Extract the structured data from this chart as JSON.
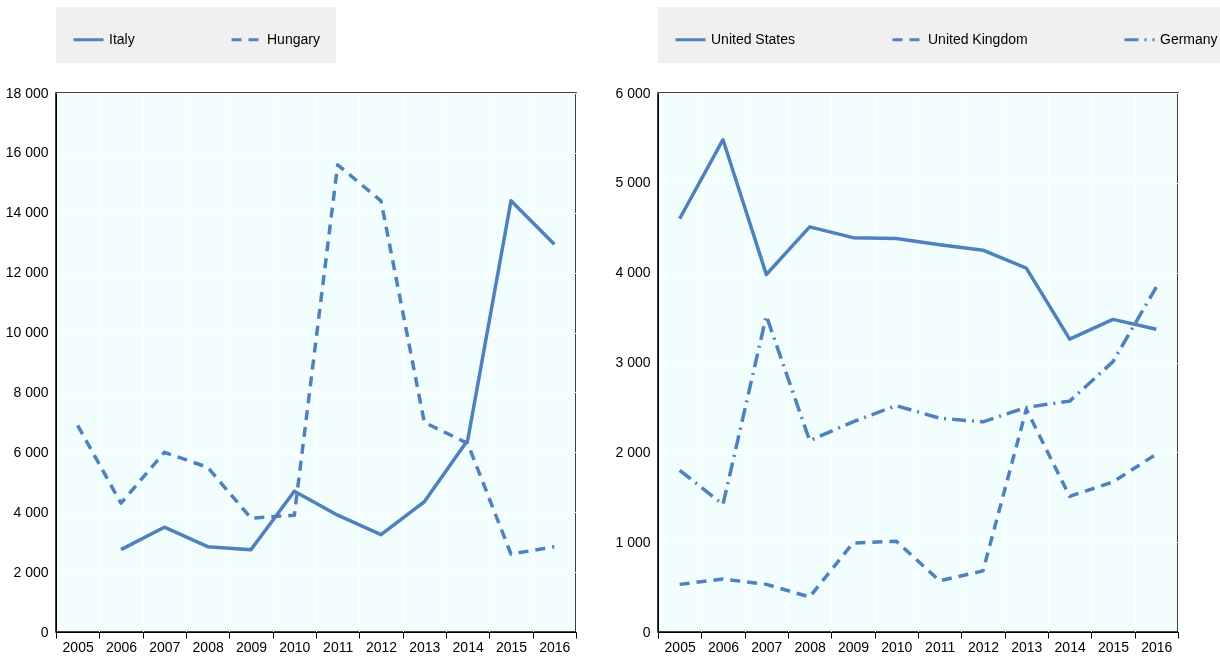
{
  "chart_data": [
    {
      "type": "line",
      "categories": [
        "2005",
        "2006",
        "2007",
        "2008",
        "2009",
        "2010",
        "2011",
        "2012",
        "2013",
        "2014",
        "2015",
        "2016"
      ],
      "ylim": [
        0,
        18000
      ],
      "yticks": [
        0,
        2000,
        4000,
        6000,
        8000,
        10000,
        12000,
        14000,
        16000,
        18000
      ],
      "grid": true,
      "legend": "top",
      "series": [
        {
          "name": "Italy",
          "color": "#4f81bd",
          "line_style": "solid",
          "values": [
            null,
            2750,
            3500,
            2850,
            2750,
            4700,
            3900,
            3250,
            4350,
            6400,
            14400,
            12950
          ]
        },
        {
          "name": "Hungary",
          "color": "#4f81bd",
          "line_style": "dashed",
          "values": [
            6900,
            4300,
            6000,
            5500,
            3800,
            3900,
            15600,
            14400,
            7000,
            6300,
            2600,
            2850
          ]
        }
      ]
    },
    {
      "type": "line",
      "categories": [
        "2005",
        "2006",
        "2007",
        "2008",
        "2009",
        "2010",
        "2011",
        "2012",
        "2013",
        "2014",
        "2015",
        "2016"
      ],
      "ylim": [
        0,
        6000
      ],
      "yticks": [
        0,
        1000,
        2000,
        3000,
        4000,
        5000,
        6000
      ],
      "grid": true,
      "legend": "top",
      "series": [
        {
          "name": "United States",
          "color": "#4f81bd",
          "line_style": "solid",
          "values": [
            4600,
            5480,
            3980,
            4510,
            4390,
            4380,
            4310,
            4250,
            4050,
            3260,
            3480,
            3370
          ]
        },
        {
          "name": "United Kingdom",
          "color": "#4f81bd",
          "line_style": "dashed",
          "values": [
            530,
            590,
            530,
            390,
            990,
            1010,
            570,
            680,
            2480,
            1510,
            1670,
            1980
          ]
        },
        {
          "name": "Germany",
          "color": "#4f81bd",
          "line_style": "dashdot",
          "values": [
            1800,
            1420,
            3520,
            2130,
            2340,
            2520,
            2380,
            2340,
            2500,
            2570,
            3010,
            3840
          ]
        }
      ]
    }
  ]
}
